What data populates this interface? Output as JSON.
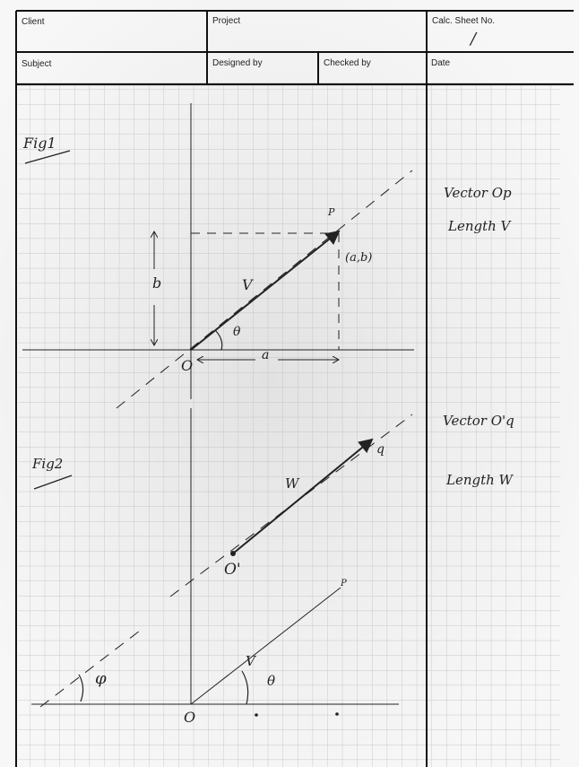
{
  "header": {
    "client_label": "Client",
    "project_label": "Project",
    "calc_sheet_label": "Calc. Sheet No.",
    "calc_sheet_value": "/",
    "subject_label": "Subject",
    "designed_by_label": "Designed by",
    "checked_by_label": "Checked by",
    "date_label": "Date"
  },
  "fig1": {
    "title": "Fig1",
    "point_label": "P",
    "coords_label": "(a,b)",
    "vector_label": "V",
    "angle_label": "θ",
    "origin_label": "O",
    "x_label": "a",
    "y_label": "b"
  },
  "fig2": {
    "title": "Fig2",
    "point_q_label": "q",
    "origin_prime_label": "O'",
    "vector_w_label": "W",
    "point_p_label": "P",
    "vector_v_label": "V",
    "angle_theta_label": "θ",
    "angle_phi_label": "φ",
    "origin_label": "O"
  },
  "notes": {
    "note1_line1": "Vector Op",
    "note1_line2": "Length V",
    "note2_line1": "Vector O'q",
    "note2_line2": "Length W"
  }
}
